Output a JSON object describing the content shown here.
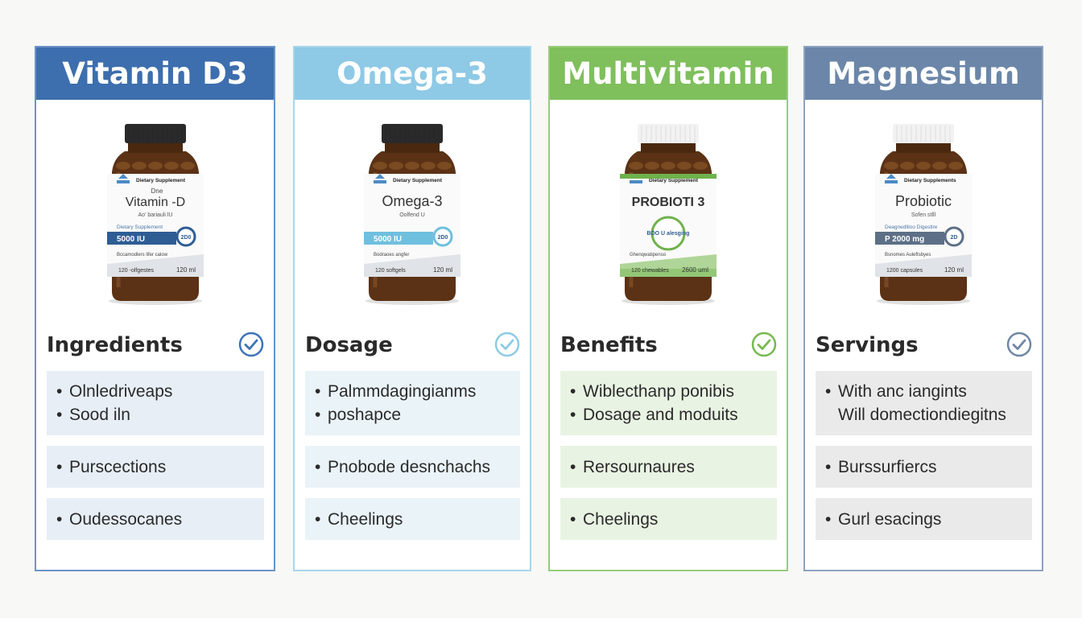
{
  "colors": {
    "background": "#f8f8f7",
    "text": "#2a2a2a"
  },
  "cards": [
    {
      "title": "Vitamin D3",
      "header_color": "#3d6eae",
      "border_color": "#6b94c8",
      "box_color": "#e7eef6",
      "check_color": "#3d73b8",
      "section": "Ingredients",
      "bottle": {
        "cap_color": "#2a2a2a",
        "band_color": "#2e5d94",
        "brand": "Dietary Supplement",
        "name_small": "Dne",
        "name": "Vitamin -D",
        "subname": "Ao' bariauli lU",
        "line": "Dietary Supplement",
        "dose": "5000 IU",
        "badge": "2D0",
        "note": "Bccamodlers lifer calow",
        "count": "120 -olfgestes",
        "volume": "120 ml"
      },
      "boxes": [
        [
          "Olnledriveaps",
          "Sood iln"
        ],
        [
          "Purscections"
        ],
        [
          "Oudessocanes"
        ]
      ],
      "box_bullets": [
        [
          true,
          true
        ],
        [
          true
        ],
        [
          true
        ]
      ]
    },
    {
      "title": "Omega-3",
      "header_color": "#8ec9e6",
      "border_color": "#a8d5ea",
      "box_color": "#eaf3f8",
      "check_color": "#8fcbe5",
      "section": "Dosage",
      "bottle": {
        "cap_color": "#2a2a2a",
        "band_color": "#6fbfde",
        "brand": "Dietary Supplement",
        "name_small": "",
        "name": "Omega-3",
        "subname": "Oolfend U",
        "line": "",
        "dose": "5000 IU",
        "badge": "2D0",
        "note": "Bodraoes angfer",
        "count": "120 softgels",
        "volume": "120 ml"
      },
      "boxes": [
        [
          "Palmmdagingianms",
          "poshapce"
        ],
        [
          "Pnobode desnchachs"
        ],
        [
          "Cheelings"
        ]
      ],
      "box_bullets": [
        [
          true,
          true
        ],
        [
          true
        ],
        [
          true
        ]
      ]
    },
    {
      "title": "Multivitamin",
      "header_color": "#7fbf5c",
      "border_color": "#97cc7a",
      "box_color": "#e9f3e3",
      "check_color": "#76b950",
      "section": "Benefits",
      "bottle": {
        "cap_color": "#f2f2f2",
        "band_color": "#6fb24c",
        "brand": "Dietary Supplement",
        "name_small": "",
        "name": "PROBIOTI 3",
        "subname": "",
        "line": "",
        "dose": "",
        "badge": "BDO U alesging",
        "note": "Ghenqwatipenso",
        "count": "120 chewables",
        "volume": "2600 uml"
      },
      "boxes": [
        [
          "Wiblecthanp ponibis",
          "Dosage and moduits"
        ],
        [
          "Rersournaures"
        ],
        [
          "Cheelings"
        ]
      ],
      "box_bullets": [
        [
          true,
          true
        ],
        [
          true
        ],
        [
          true
        ]
      ]
    },
    {
      "title": "Magnesium",
      "header_color": "#6b86a8",
      "border_color": "#8ea3bf",
      "box_color": "#eaeaea",
      "check_color": "#6f87a6",
      "section": "Servings",
      "bottle": {
        "cap_color": "#f2f2f2",
        "band_color": "#5c6f86",
        "brand": "Dietary Supplements",
        "name_small": "",
        "name": "Probiotic",
        "subname": "Sofen stlll",
        "line": "Deagnedliloo Digestlre",
        "dose": "P 2000 mg",
        "badge": "2D",
        "note": "Bsnomes Auleftsbyes",
        "count": "1200 capsules",
        "volume": "120 ml"
      },
      "boxes": [
        [
          "With anc iangints",
          "Will domectiondiegitns"
        ],
        [
          "Burssurfiercs"
        ],
        [
          "Gurl esacings"
        ]
      ],
      "box_bullets": [
        [
          true,
          false
        ],
        [
          true
        ],
        [
          true
        ]
      ]
    }
  ]
}
